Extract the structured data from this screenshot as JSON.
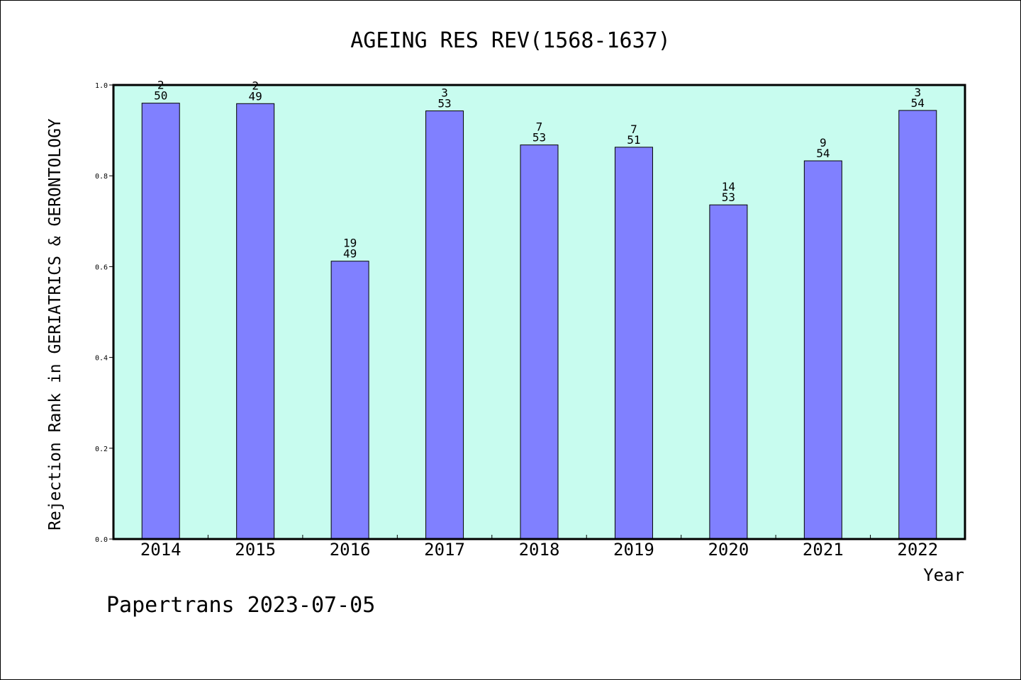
{
  "chart_data": {
    "type": "bar",
    "title": "AGEING RES REV(1568-1637)",
    "xlabel": "Year",
    "ylabel": "Rejection Rank in GERIATRICS & GERONTOLOGY",
    "categories": [
      "2014",
      "2015",
      "2016",
      "2017",
      "2018",
      "2019",
      "2020",
      "2021",
      "2022"
    ],
    "values": [
      0.96,
      0.959,
      0.612,
      0.943,
      0.868,
      0.863,
      0.736,
      0.833,
      0.944
    ],
    "labels_top": [
      "2",
      "2",
      "19",
      "3",
      "7",
      "7",
      "14",
      "9",
      "3"
    ],
    "labels_bottom": [
      "50",
      "49",
      "49",
      "53",
      "53",
      "51",
      "53",
      "54",
      "54"
    ],
    "ylim": [
      0,
      1.0
    ],
    "yticks": [
      "0.0",
      "0.2",
      "0.4",
      "0.6",
      "0.8",
      "1.0"
    ],
    "grid": false,
    "colors": {
      "plot_background": "#c8fcef",
      "bar": "#8080ff"
    }
  },
  "footer": {
    "watermark": "Papertrans 2023-07-05"
  }
}
